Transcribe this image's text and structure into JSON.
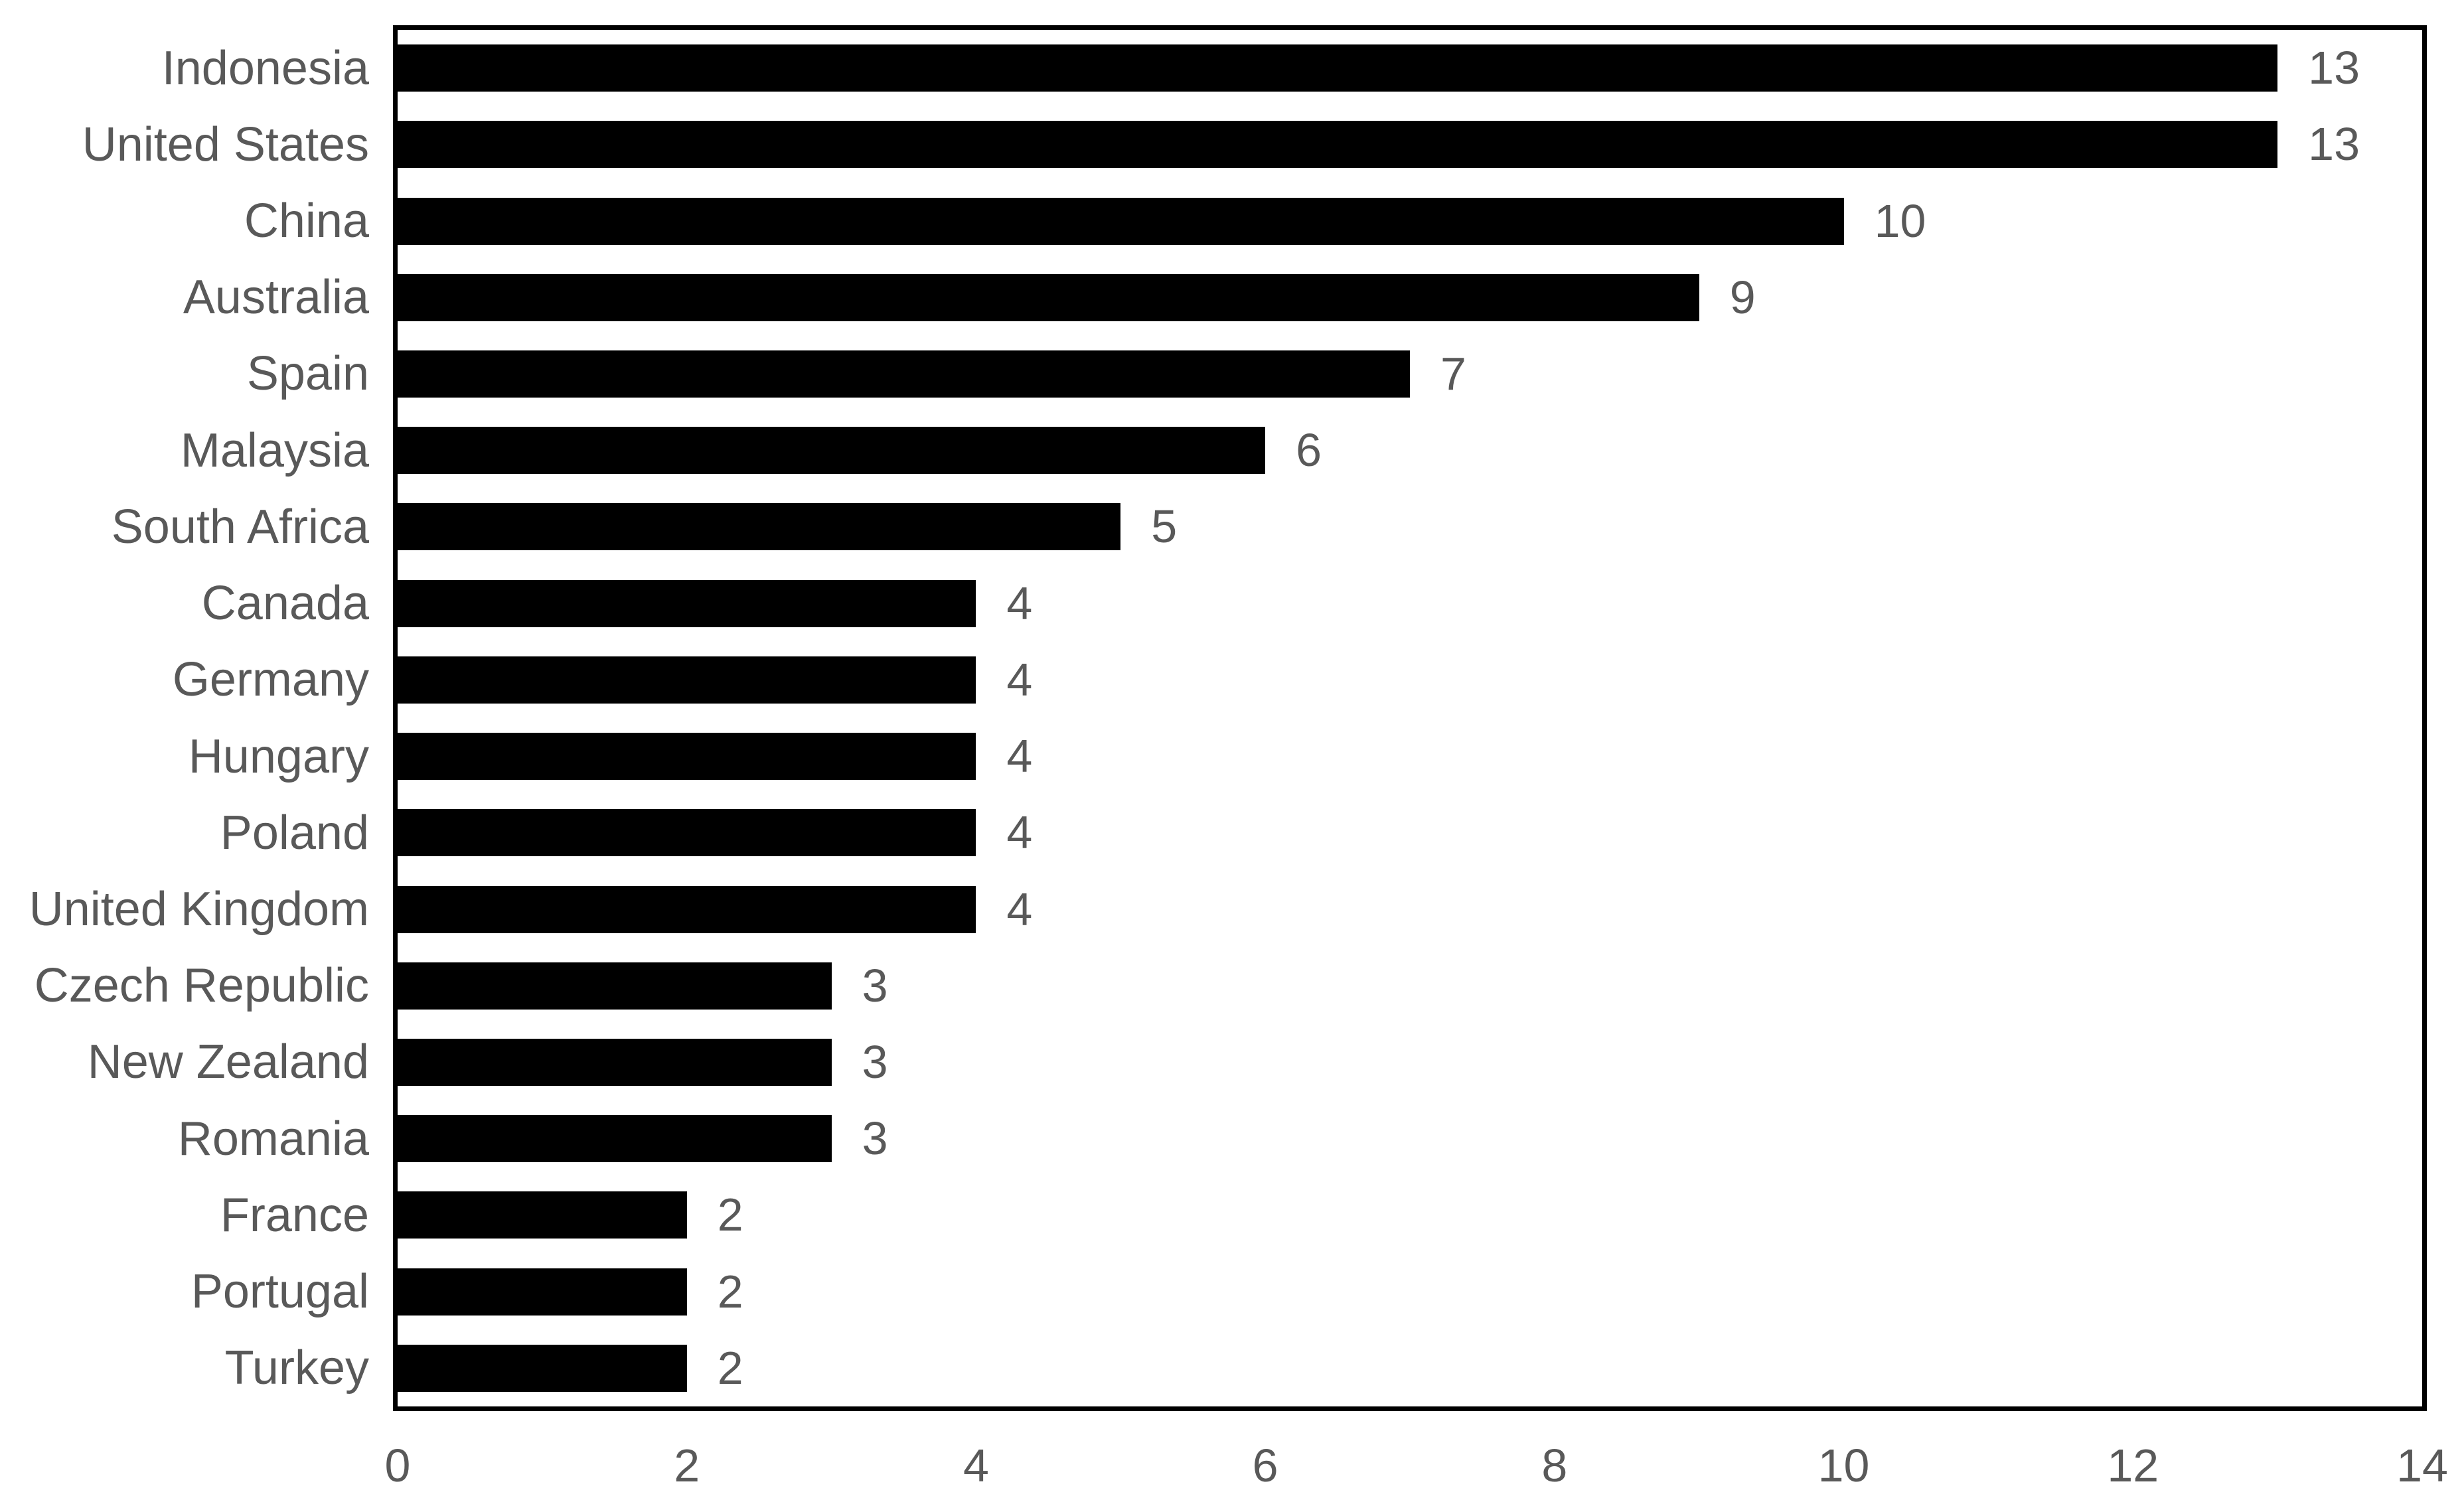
{
  "chart_data": {
    "type": "bar",
    "orientation": "horizontal",
    "title": "",
    "xlabel": "",
    "ylabel": "",
    "categories": [
      "Indonesia",
      "United States",
      "China",
      "Australia",
      "Spain",
      "Malaysia",
      "South Africa",
      "Canada",
      "Germany",
      "Hungary",
      "Poland",
      "United Kingdom",
      "Czech Republic",
      "New Zealand",
      "Romania",
      "France",
      "Portugal",
      "Turkey"
    ],
    "values": [
      13,
      13,
      10,
      9,
      7,
      6,
      5,
      4,
      4,
      4,
      4,
      4,
      3,
      3,
      3,
      2,
      2,
      2
    ],
    "data_labels": [
      "13",
      "13",
      "10",
      "9",
      "7",
      "6",
      "5",
      "4",
      "4",
      "4",
      "4",
      "4",
      "3",
      "3",
      "3",
      "2",
      "2",
      "2"
    ],
    "xlim": [
      0,
      14
    ],
    "x_ticks": [
      "0",
      "2",
      "4",
      "6",
      "8",
      "10",
      "12",
      "14"
    ],
    "x_tick_values": [
      0,
      2,
      4,
      6,
      8,
      10,
      12,
      14
    ],
    "grid": false,
    "legend": false,
    "plot_border": true,
    "colors": {
      "bar": "#000000",
      "text": "#595959",
      "border": "#000000",
      "background": "#ffffff"
    }
  }
}
